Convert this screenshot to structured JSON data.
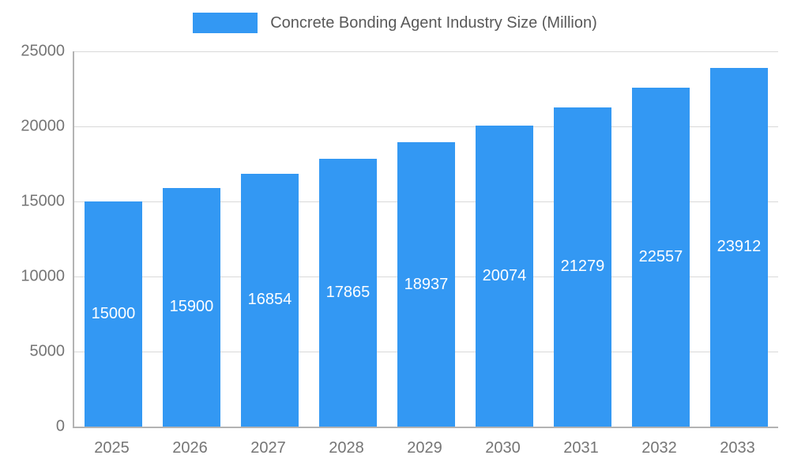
{
  "chart_data": {
    "type": "bar",
    "title": "Concrete Bonding Agent Industry Size (Million)",
    "categories": [
      "2025",
      "2026",
      "2027",
      "2028",
      "2029",
      "2030",
      "2031",
      "2032",
      "2033"
    ],
    "values": [
      15000,
      15900,
      16854,
      17865,
      18937,
      20074,
      21279,
      22557,
      23912
    ],
    "y_ticks": [
      0,
      5000,
      10000,
      15000,
      20000,
      25000
    ],
    "ylim": [
      0,
      25000
    ],
    "bar_color": "#3398f3",
    "bar_label_color": "#ffffff",
    "grid": true,
    "legend_position": "top",
    "xlabel": "",
    "ylabel": ""
  }
}
